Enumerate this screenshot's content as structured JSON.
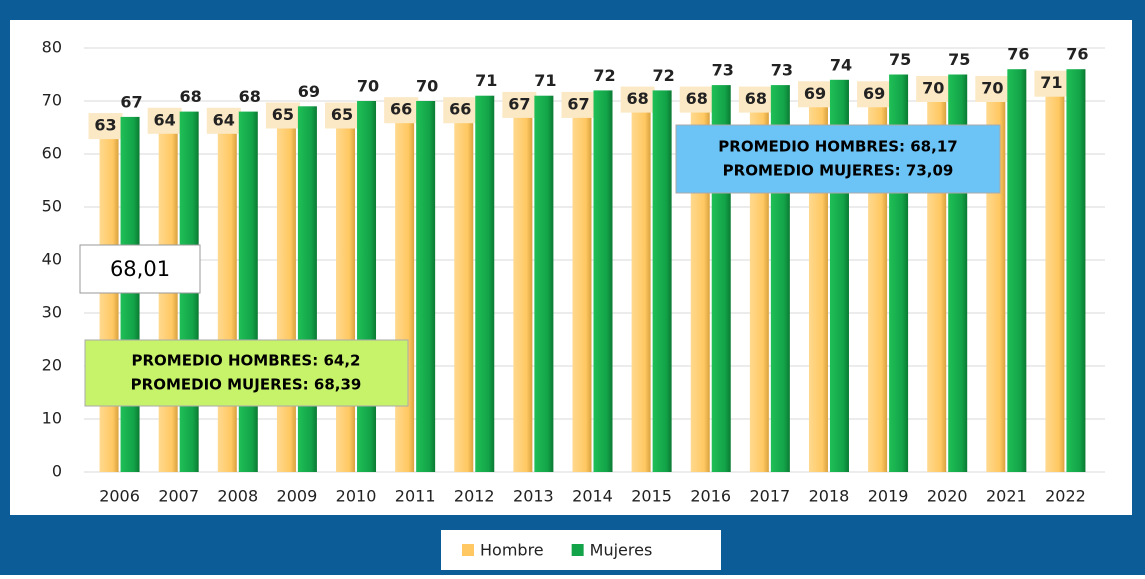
{
  "chart_data": {
    "type": "bar",
    "categories": [
      "2006",
      "2007",
      "2008",
      "2009",
      "2010",
      "2011",
      "2012",
      "2013",
      "2014",
      "2015",
      "2016",
      "2017",
      "2018",
      "2019",
      "2020",
      "2021",
      "2022"
    ],
    "series": [
      {
        "name": "Hombre",
        "color": "#ffc862",
        "values": [
          63,
          64,
          64,
          65,
          65,
          66,
          66,
          67,
          67,
          68,
          68,
          68,
          69,
          69,
          70,
          70,
          71
        ]
      },
      {
        "name": "Mujeres",
        "color": "#13a348",
        "values": [
          67,
          68,
          68,
          69,
          70,
          70,
          71,
          71,
          72,
          72,
          73,
          73,
          74,
          75,
          75,
          76,
          76
        ]
      }
    ],
    "ylim": [
      0,
      80
    ],
    "yticks": [
      0,
      10,
      20,
      30,
      40,
      50,
      60,
      70,
      80
    ],
    "grid": true,
    "annotations": [
      "68,01",
      "PROMEDIO HOMBRES: 64,2",
      "PROMEDIO MUJERES: 68,39",
      "PROMEDIO HOMBRES: 68,17",
      "PROMEDIO MUJERES: 73,09"
    ],
    "legend": "bottom"
  }
}
